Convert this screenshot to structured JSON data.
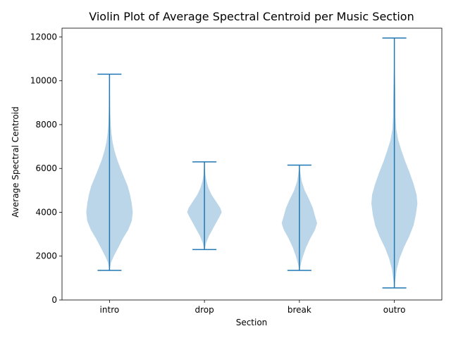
{
  "chart_data": {
    "type": "violin",
    "title": "Violin Plot of Average Spectral Centroid per Music Section",
    "xlabel": "Section",
    "ylabel": "Average Spectral Centroid",
    "categories": [
      "intro",
      "drop",
      "break",
      "outro"
    ],
    "ylim": [
      0,
      12400
    ],
    "yticks": [
      0,
      2000,
      4000,
      6000,
      8000,
      10000,
      12000
    ],
    "grid": false,
    "colors": {
      "violin_fill": "#1f77b4",
      "line": "#1f77b4"
    },
    "violins": [
      {
        "category": "intro",
        "min": 1350,
        "max": 10300,
        "density_profile": [
          [
            1350,
            0.0
          ],
          [
            1700,
            0.06
          ],
          [
            2000,
            0.18
          ],
          [
            2400,
            0.37
          ],
          [
            2800,
            0.56
          ],
          [
            3200,
            0.78
          ],
          [
            3600,
            0.93
          ],
          [
            4000,
            0.97
          ],
          [
            4400,
            0.93
          ],
          [
            4800,
            0.86
          ],
          [
            5200,
            0.76
          ],
          [
            5600,
            0.61
          ],
          [
            6000,
            0.46
          ],
          [
            6400,
            0.32
          ],
          [
            6800,
            0.21
          ],
          [
            7200,
            0.13
          ],
          [
            7600,
            0.08
          ],
          [
            8000,
            0.05
          ],
          [
            8600,
            0.03
          ],
          [
            9200,
            0.02
          ],
          [
            9800,
            0.01
          ],
          [
            10300,
            0.0
          ]
        ]
      },
      {
        "category": "drop",
        "min": 2300,
        "max": 6300,
        "density_profile": [
          [
            2300,
            0.0
          ],
          [
            2600,
            0.07
          ],
          [
            2900,
            0.18
          ],
          [
            3200,
            0.33
          ],
          [
            3500,
            0.48
          ],
          [
            3800,
            0.63
          ],
          [
            4000,
            0.72
          ],
          [
            4200,
            0.66
          ],
          [
            4500,
            0.48
          ],
          [
            4800,
            0.3
          ],
          [
            5100,
            0.17
          ],
          [
            5400,
            0.09
          ],
          [
            5700,
            0.04
          ],
          [
            6000,
            0.02
          ],
          [
            6300,
            0.0
          ]
        ]
      },
      {
        "category": "break",
        "min": 1350,
        "max": 6150,
        "density_profile": [
          [
            1350,
            0.0
          ],
          [
            1700,
            0.07
          ],
          [
            2000,
            0.15
          ],
          [
            2400,
            0.28
          ],
          [
            2800,
            0.45
          ],
          [
            3200,
            0.65
          ],
          [
            3500,
            0.74
          ],
          [
            3800,
            0.66
          ],
          [
            4200,
            0.56
          ],
          [
            4600,
            0.4
          ],
          [
            5000,
            0.22
          ],
          [
            5400,
            0.1
          ],
          [
            5800,
            0.04
          ],
          [
            6150,
            0.0
          ]
        ]
      },
      {
        "category": "outro",
        "min": 550,
        "max": 11950,
        "density_profile": [
          [
            550,
            0.0
          ],
          [
            900,
            0.04
          ],
          [
            1400,
            0.1
          ],
          [
            1900,
            0.22
          ],
          [
            2400,
            0.4
          ],
          [
            2900,
            0.62
          ],
          [
            3400,
            0.8
          ],
          [
            3900,
            0.9
          ],
          [
            4400,
            0.96
          ],
          [
            4800,
            0.93
          ],
          [
            5300,
            0.8
          ],
          [
            5800,
            0.64
          ],
          [
            6300,
            0.46
          ],
          [
            6800,
            0.3
          ],
          [
            7300,
            0.16
          ],
          [
            7800,
            0.08
          ],
          [
            8400,
            0.05
          ],
          [
            9000,
            0.05
          ],
          [
            9600,
            0.04
          ],
          [
            10200,
            0.03
          ],
          [
            10800,
            0.01
          ],
          [
            11400,
            0.01
          ],
          [
            11950,
            0.0
          ]
        ]
      }
    ]
  }
}
